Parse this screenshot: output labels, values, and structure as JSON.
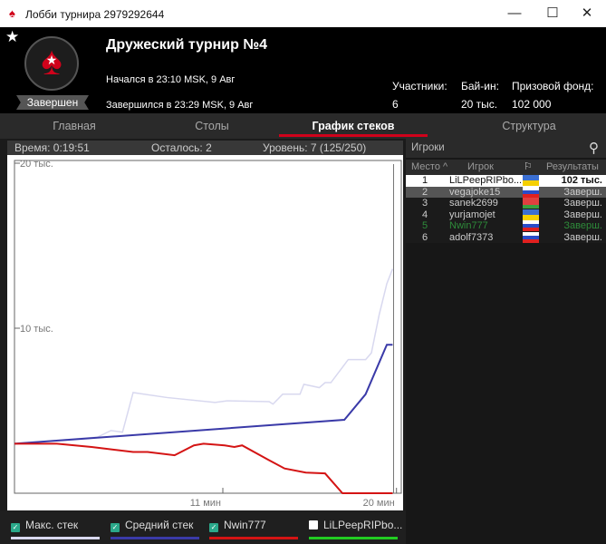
{
  "window": {
    "title": "Лобби турнира 2979292644",
    "minimize": "—",
    "maximize": "☐",
    "close": "✕"
  },
  "header": {
    "name": "Дружеский турнир №4",
    "started": "Начался в 23:10 MSK, 9 Авг",
    "finished": "Завершился в 23:29 MSK, 9 Авг",
    "status": "Завершен",
    "participants_label": "Участники:",
    "participants": "6",
    "buyin_label": "Бай-ин:",
    "buyin": "20 тыс.",
    "prize_label": "Призовой фонд:",
    "prize": "102 000",
    "favorite_icon": "star-icon"
  },
  "tabs": [
    {
      "label": "Главная"
    },
    {
      "label": "Столы"
    },
    {
      "label": "График стеков",
      "active": true
    },
    {
      "label": "Структура"
    }
  ],
  "info": {
    "time": "Время: 0:19:51",
    "left": "Осталось: 2",
    "level": "Уровень: 7 (125/250)"
  },
  "players": {
    "search_label": "Игроки",
    "columns": [
      "Место",
      "Игрок",
      "flag",
      "Результаты"
    ],
    "rows": [
      {
        "place": "1",
        "name": "LiLPeepRIPbo...",
        "result": "102 тыс.",
        "flag": [
          "#3b6fd1",
          "#f5d000"
        ]
      },
      {
        "place": "2",
        "name": "vegajoke15",
        "result": "Заверш.",
        "flag": [
          "#ffffff",
          "#2a4cc8",
          "#e02020"
        ]
      },
      {
        "place": "3",
        "name": "sanek2699",
        "result": "Заверш.",
        "flag": [
          "#e04040",
          "#e04040",
          "#3aa040"
        ]
      },
      {
        "place": "4",
        "name": "yurjamojet",
        "result": "Заверш.",
        "flag": [
          "#3b6fd1",
          "#f5d000"
        ]
      },
      {
        "place": "5",
        "name": "Nwin777",
        "result": "Заверш.",
        "flag": [
          "#ffffff",
          "#2a4cc8",
          "#e02020"
        ],
        "highlight": "#2e8b3a"
      },
      {
        "place": "6",
        "name": "adolf7373",
        "result": "Заверш.",
        "flag": [
          "#ffffff",
          "#2a4cc8",
          "#e02020"
        ]
      }
    ]
  },
  "legend": [
    {
      "label": "Макс. стек",
      "checked": true,
      "color": "#d8d8ef"
    },
    {
      "label": "Средний стек",
      "checked": true,
      "color": "#3a3aa8"
    },
    {
      "label": "Nwin777",
      "checked": true,
      "color": "#d41414"
    },
    {
      "label": "LiLPeepRIPbo...",
      "checked": false,
      "color": "#22cc22"
    }
  ],
  "chart_data": {
    "type": "line",
    "xlabel": "",
    "ylabel": "",
    "ylim": [
      0,
      20000
    ],
    "xlim": [
      0,
      20
    ],
    "yticks": [
      {
        "v": 20000,
        "label": "20 тыс."
      },
      {
        "v": 10000,
        "label": "10 тыс."
      }
    ],
    "xticks": [
      {
        "v": 11,
        "label": "11 мин"
      },
      {
        "v": 20,
        "label": "20 мин"
      }
    ],
    "current_time": 19.85,
    "series": [
      {
        "name": "Макс. стек",
        "color": "#d8d8ef",
        "points": [
          [
            0.2,
            3000
          ],
          [
            4.5,
            3400
          ],
          [
            5.2,
            3800
          ],
          [
            5.8,
            3700
          ],
          [
            6.35,
            6100
          ],
          [
            8.1,
            5800
          ],
          [
            10.6,
            5500
          ],
          [
            11.2,
            5600
          ],
          [
            13.4,
            5550
          ],
          [
            13.6,
            5400
          ],
          [
            14.1,
            6000
          ],
          [
            15.0,
            6000
          ],
          [
            15.2,
            6600
          ],
          [
            16.0,
            6400
          ],
          [
            16.3,
            6700
          ],
          [
            16.6,
            6700
          ],
          [
            17.5,
            8100
          ],
          [
            18.4,
            8100
          ],
          [
            18.7,
            8500
          ],
          [
            19.1,
            10800
          ],
          [
            19.5,
            12700
          ],
          [
            19.8,
            13600
          ]
        ]
      },
      {
        "name": "Средний стек",
        "color": "#3a3aa8",
        "points": [
          [
            0.2,
            3000
          ],
          [
            17.3,
            4450
          ],
          [
            18.4,
            6000
          ],
          [
            19.5,
            9000
          ],
          [
            19.8,
            9000
          ]
        ]
      },
      {
        "name": "Nwin777",
        "color": "#d41414",
        "points": [
          [
            0.2,
            3000
          ],
          [
            2.4,
            3000
          ],
          [
            4.2,
            2800
          ],
          [
            6.35,
            2500
          ],
          [
            7.1,
            2500
          ],
          [
            8.5,
            2300
          ],
          [
            9.5,
            2900
          ],
          [
            10.0,
            3000
          ],
          [
            11.1,
            2900
          ],
          [
            11.6,
            2800
          ],
          [
            12.0,
            2900
          ],
          [
            13.4,
            2000
          ],
          [
            14.2,
            1500
          ],
          [
            15.3,
            1250
          ],
          [
            16.3,
            1200
          ],
          [
            17.2,
            0
          ],
          [
            19.8,
            0
          ]
        ]
      }
    ]
  }
}
